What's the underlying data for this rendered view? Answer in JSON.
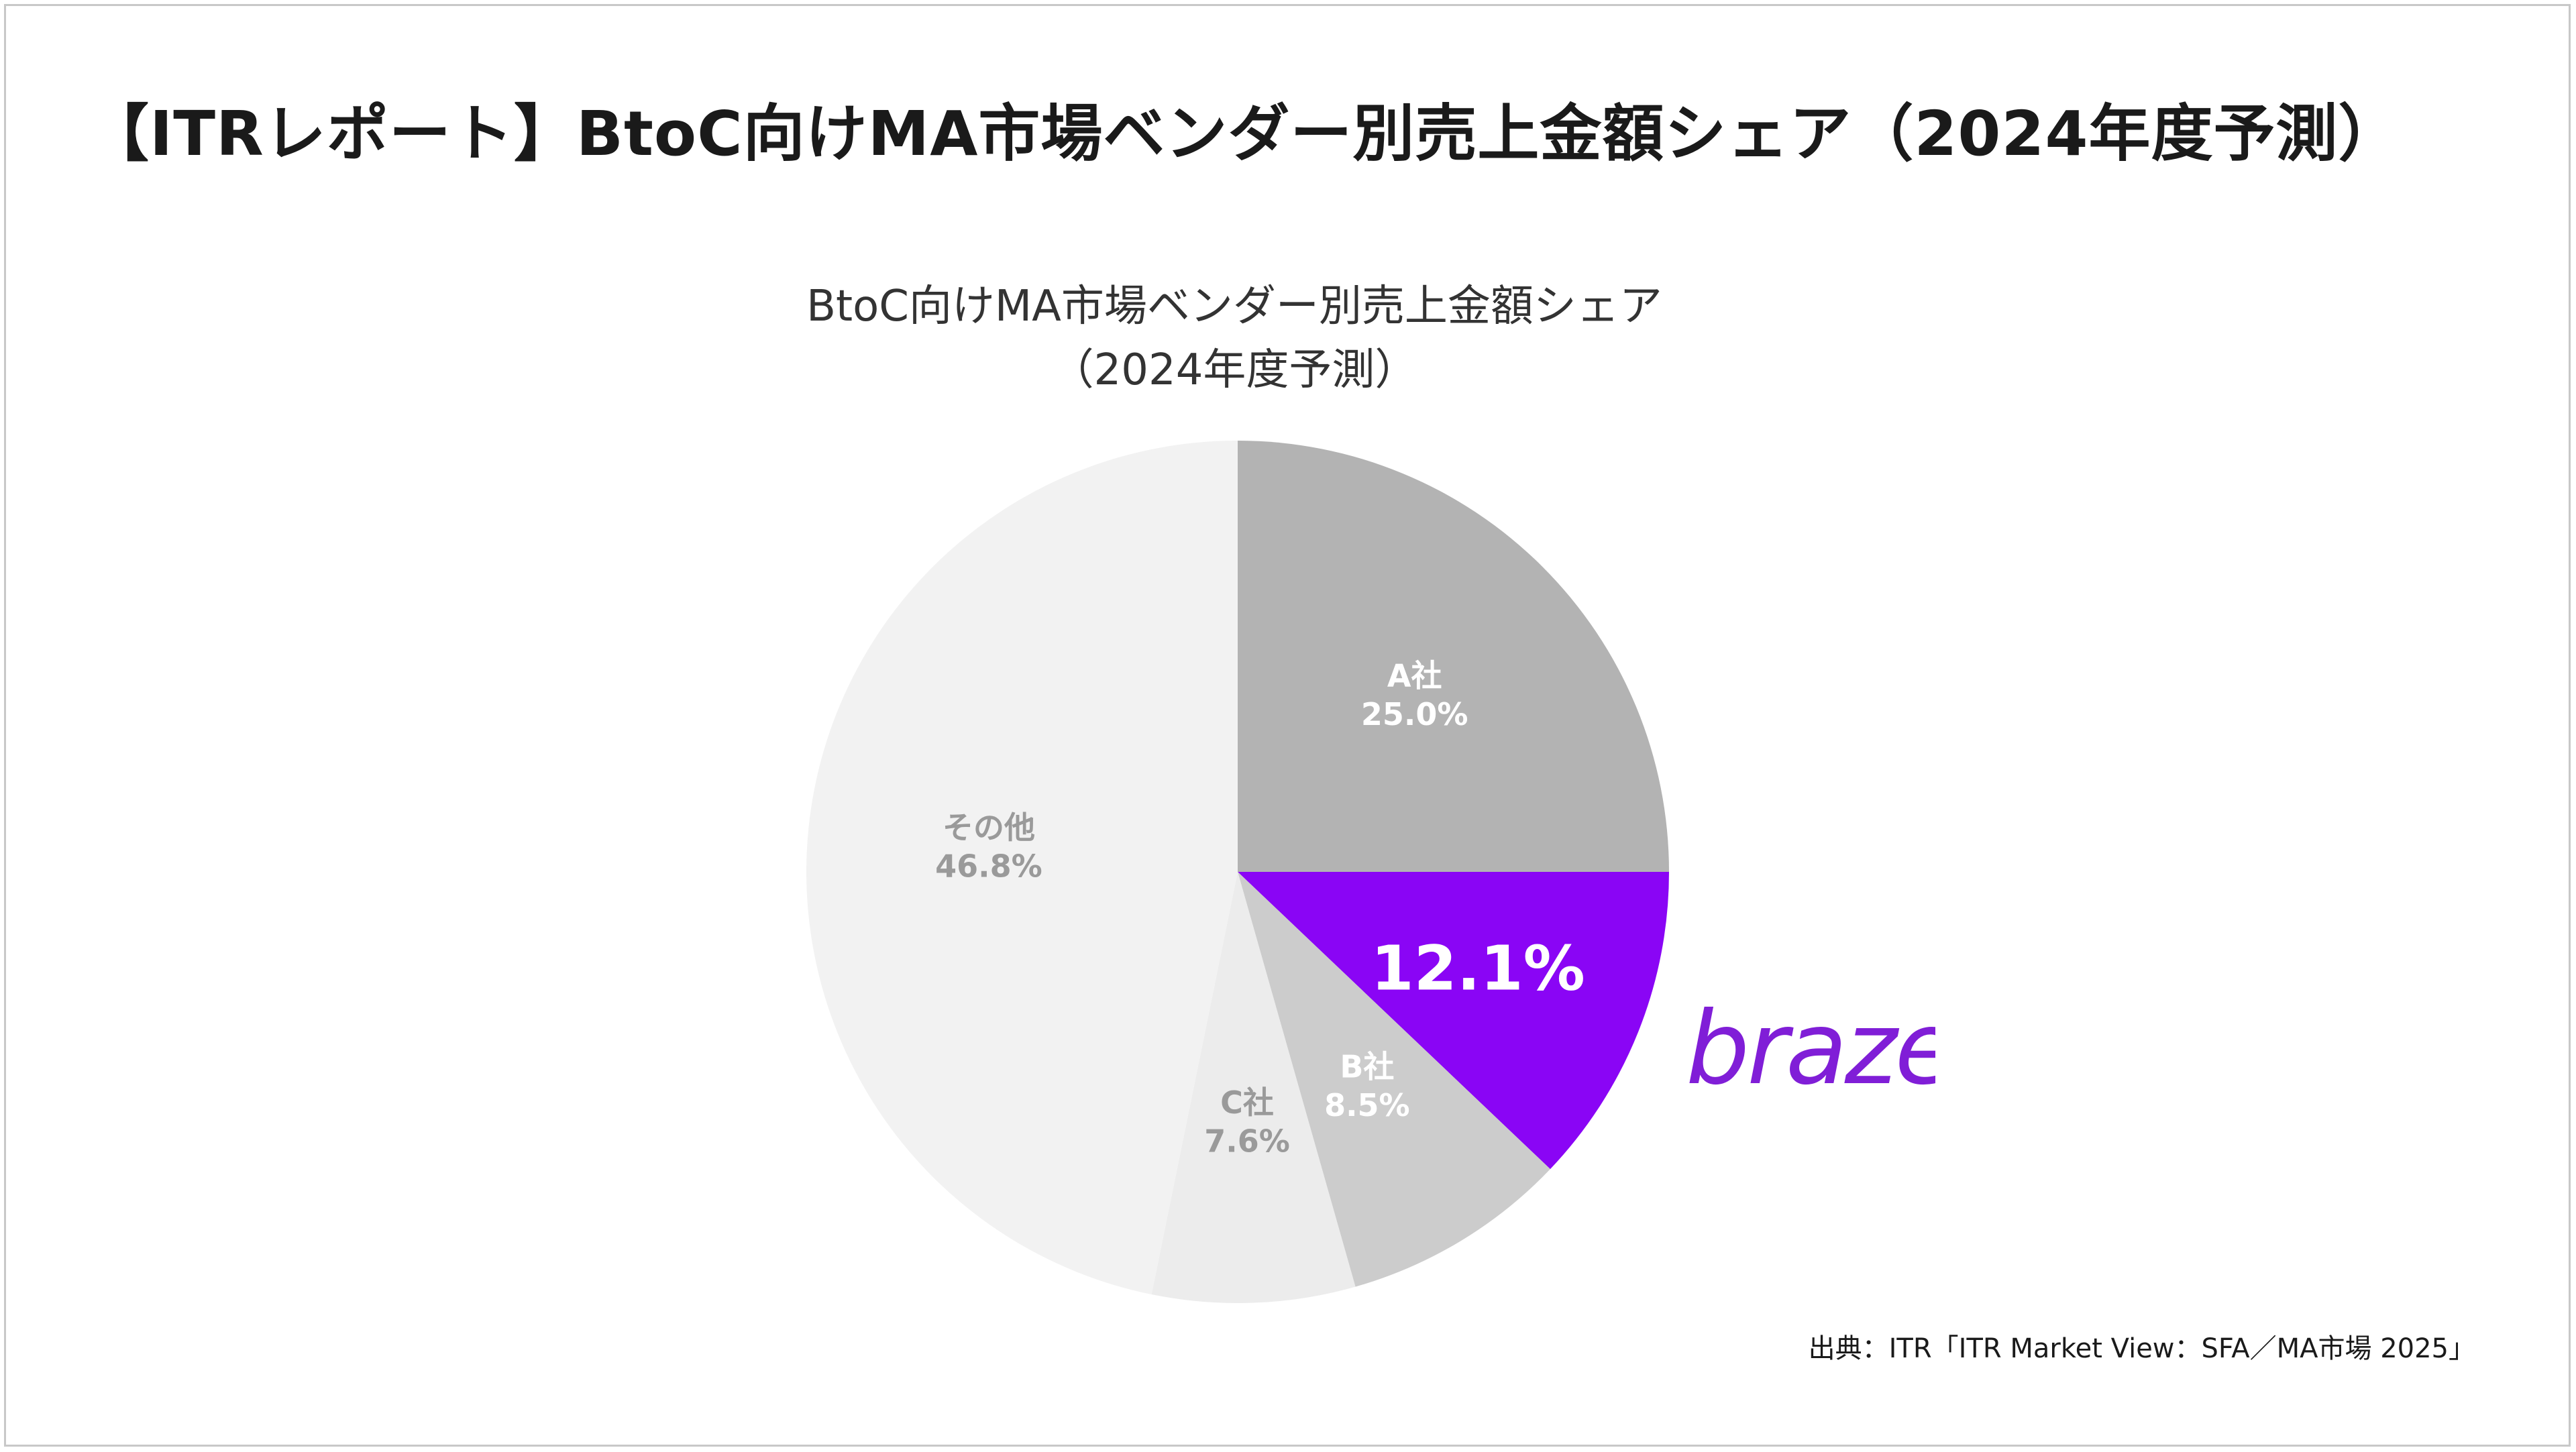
{
  "slide_title": "【ITRレポート】BtoC向けMA市場ベンダー別売上金額シェア（2024年度予測）",
  "chart_data": {
    "type": "pie",
    "title_line1": "BtoC向けMA市場ベンダー別売上金額シェア",
    "title_line2": "（2024年度予測）",
    "slices": [
      {
        "name": "A社",
        "value": 25.0,
        "label": "25.0%",
        "color": "#b3b3b3",
        "text_color": "#ffffff"
      },
      {
        "name": "",
        "value": 12.1,
        "label": "12.1%",
        "color": "#8a05f5",
        "text_color": "#ffffff",
        "highlight": true
      },
      {
        "name": "B社",
        "value": 8.5,
        "label": "8.5%",
        "color": "#cccccc",
        "text_color": "#ffffff"
      },
      {
        "name": "C社",
        "value": 7.6,
        "label": "7.6%",
        "color": "#ececec",
        "text_color": "#9a9a9a"
      },
      {
        "name": "その他",
        "value": 46.8,
        "label": "46.8%",
        "color": "#f2f2f2",
        "text_color": "#9a9a9a"
      }
    ],
    "start_angle": "12 o'clock",
    "direction": "clockwise",
    "legend": "none"
  },
  "logo": {
    "text": "braze",
    "color": "#801ed7",
    "icon": "braze-logo"
  },
  "source": "出典：ITR「ITR Market View：SFA／MA市場 2025」"
}
